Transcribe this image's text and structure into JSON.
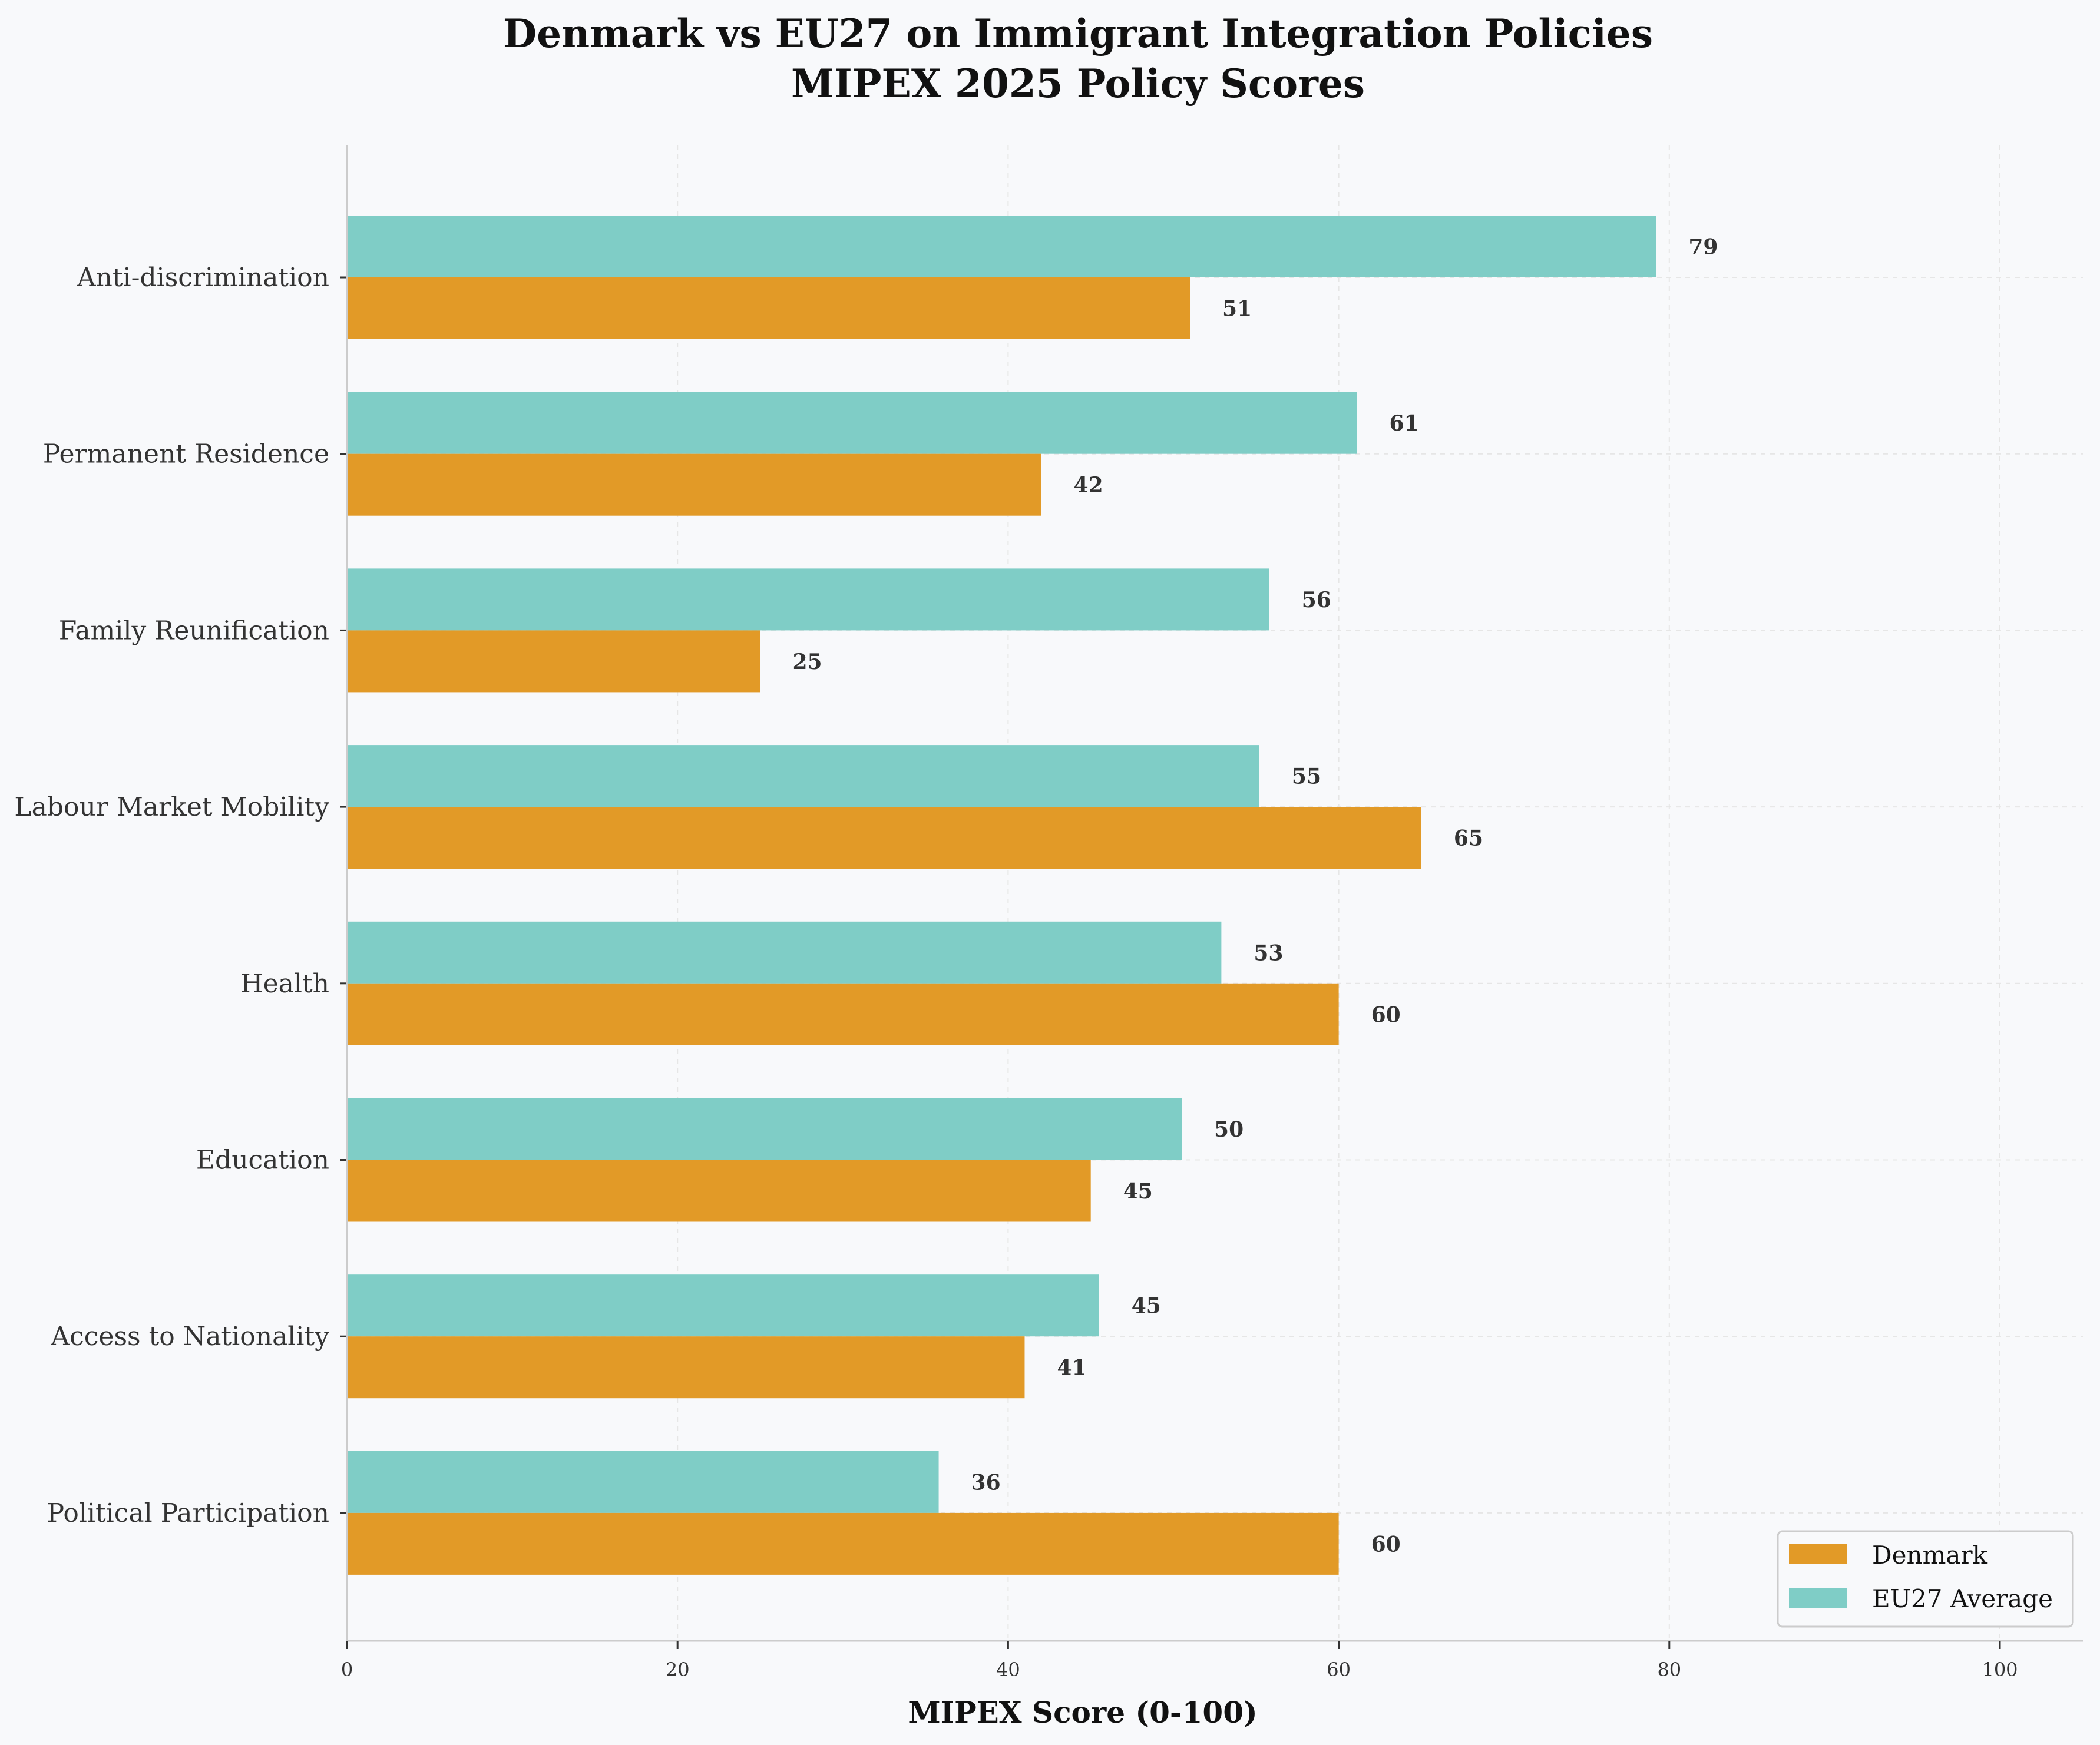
{
  "chart_data": {
    "type": "bar",
    "orientation": "horizontal",
    "title": "Denmark vs EU27 on Immigrant Integration Policies",
    "subtitle": "MIPEX 2025 Policy Scores",
    "xlabel": "MIPEX Score (0-100)",
    "ylabel": "",
    "xlim": [
      0,
      105
    ],
    "xticks": [
      0,
      20,
      40,
      60,
      80,
      100
    ],
    "grid": true,
    "legend_position": "bottom-right",
    "categories": [
      "Anti-discrimination",
      "Permanent Residence",
      "Family Reunification",
      "Labour Market Mobility",
      "Health",
      "Education",
      "Access to Nationality",
      "Political Participation"
    ],
    "series": [
      {
        "name": "Denmark",
        "color": "#e29a27",
        "values": [
          51,
          42,
          25,
          65,
          60,
          45,
          41,
          60
        ],
        "labels": [
          "51",
          "42",
          "25",
          "65",
          "60",
          "45",
          "41",
          "60"
        ]
      },
      {
        "name": "EU27 Average",
        "color": "#7fcdc6",
        "values": [
          79.2,
          61.1,
          55.8,
          55.2,
          52.9,
          50.5,
          45.5,
          35.8
        ],
        "labels": [
          "79",
          "61",
          "56",
          "55",
          "53",
          "50",
          "45",
          "36"
        ]
      }
    ]
  }
}
